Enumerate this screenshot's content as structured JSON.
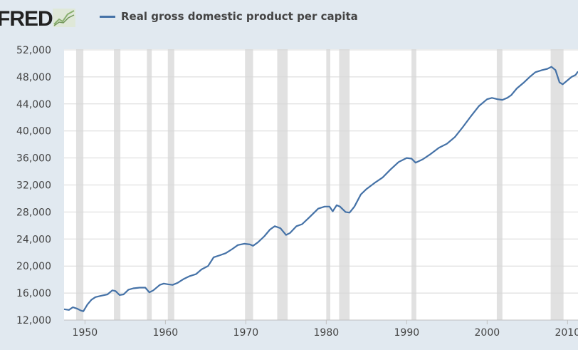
{
  "header": {
    "logo_text": "FRED",
    "legend_label": "Real gross domestic product per capita",
    "line_color": "#4572a7"
  },
  "chart_data": {
    "type": "line",
    "title": "Real gross domestic product per capita",
    "xlabel": "",
    "ylabel": "",
    "xlim": [
      1947.4,
      2011.3
    ],
    "ylim": [
      12000,
      52000
    ],
    "yticks": [
      12000,
      16000,
      20000,
      24000,
      28000,
      32000,
      36000,
      40000,
      44000,
      48000,
      52000
    ],
    "ytick_labels": [
      "12,000",
      "16,000",
      "20,000",
      "24,000",
      "28,000",
      "32,000",
      "36,000",
      "40,000",
      "44,000",
      "48,000",
      "52,000"
    ],
    "xticks": [
      1950,
      1960,
      1970,
      1980,
      1990,
      2000,
      2010
    ],
    "xtick_labels": [
      "1950",
      "1960",
      "1970",
      "1980",
      "1990",
      "2000",
      "2010"
    ],
    "grid": true,
    "recessions": [
      [
        1948.9,
        1949.8
      ],
      [
        1953.6,
        1954.4
      ],
      [
        1957.7,
        1958.3
      ],
      [
        1960.3,
        1961.1
      ],
      [
        1969.9,
        1970.9
      ],
      [
        1973.9,
        1975.2
      ],
      [
        1980.0,
        1980.5
      ],
      [
        1981.6,
        1982.9
      ],
      [
        1990.6,
        1991.2
      ],
      [
        2001.2,
        2001.9
      ],
      [
        2007.9,
        2009.5
      ]
    ],
    "series": [
      {
        "name": "Real gross domestic product per capita",
        "color": "#4572a7",
        "x": [
          1947.4,
          1948,
          1948.5,
          1949,
          1949.5,
          1949.8,
          1950.3,
          1950.8,
          1951.3,
          1952,
          1952.8,
          1953.4,
          1953.8,
          1954.3,
          1954.8,
          1955.4,
          1956,
          1956.8,
          1957.5,
          1958,
          1958.5,
          1959.3,
          1959.8,
          1960.3,
          1960.9,
          1961.5,
          1962.3,
          1963,
          1963.8,
          1964.5,
          1965.3,
          1966,
          1966.8,
          1967.5,
          1968.3,
          1969,
          1969.8,
          1970.5,
          1970.9,
          1971.5,
          1972.3,
          1973,
          1973.6,
          1974.3,
          1975,
          1975.5,
          1976.3,
          1977,
          1977.8,
          1978.4,
          1979,
          1979.8,
          1980.4,
          1980.8,
          1981.3,
          1981.7,
          1982.4,
          1982.9,
          1983.5,
          1984.3,
          1985,
          1986,
          1987,
          1988,
          1989,
          1990,
          1990.6,
          1991.1,
          1992,
          1993,
          1994,
          1995,
          1996,
          1997,
          1998,
          1999,
          2000,
          2000.6,
          2001.3,
          2001.9,
          2002.5,
          2003,
          2003.7,
          2004.5,
          2005.3,
          2006,
          2006.8,
          2007.5,
          2008,
          2008.5,
          2009,
          2009.4,
          2010,
          2010.5,
          2011,
          2011.3
        ],
        "y": [
          13600,
          13500,
          13900,
          13700,
          13400,
          13300,
          14300,
          15000,
          15400,
          15600,
          15800,
          16400,
          16300,
          15700,
          15800,
          16500,
          16700,
          16800,
          16800,
          16100,
          16400,
          17200,
          17400,
          17300,
          17200,
          17500,
          18100,
          18500,
          18800,
          19500,
          20000,
          21300,
          21600,
          21900,
          22500,
          23100,
          23300,
          23200,
          23000,
          23500,
          24400,
          25400,
          25900,
          25600,
          24600,
          24900,
          25900,
          26200,
          27100,
          27800,
          28500,
          28800,
          28800,
          28100,
          29000,
          28800,
          28000,
          27900,
          28800,
          30600,
          31400,
          32300,
          33100,
          34300,
          35400,
          36000,
          35900,
          35300,
          35800,
          36600,
          37500,
          38100,
          39100,
          40600,
          42200,
          43700,
          44700,
          44900,
          44700,
          44600,
          44900,
          45300,
          46300,
          47100,
          48000,
          48700,
          49000,
          49200,
          49500,
          49000,
          47200,
          46900,
          47500,
          48000,
          48300,
          48800
        ]
      }
    ]
  }
}
